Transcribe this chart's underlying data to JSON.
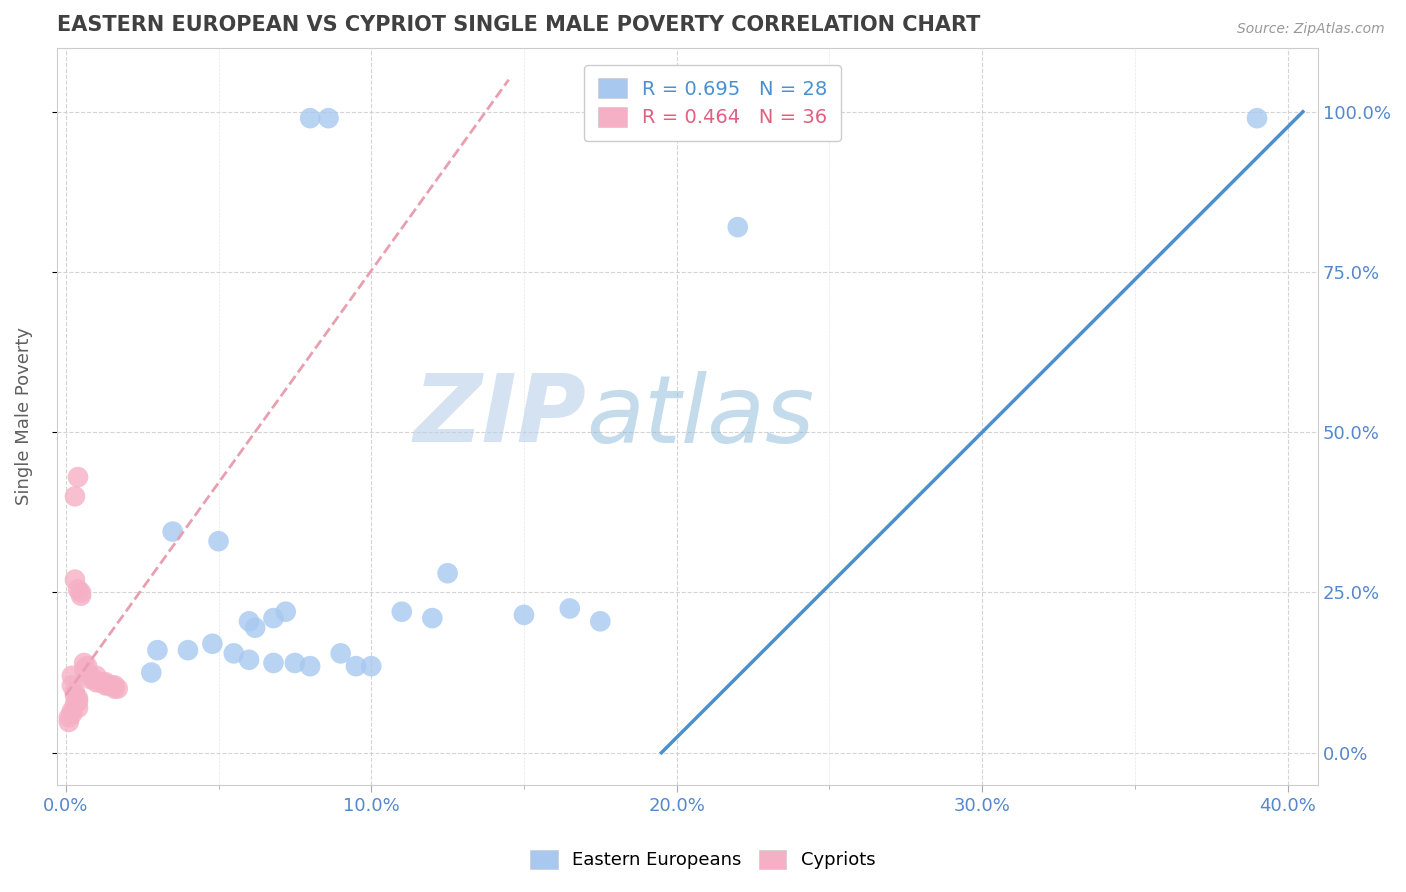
{
  "title": "EASTERN EUROPEAN VS CYPRIOT SINGLE MALE POVERTY CORRELATION CHART",
  "source": "Source: ZipAtlas.com",
  "xlabel_ticks": [
    "0.0%",
    "",
    "",
    "",
    "",
    "10.0%",
    "",
    "",
    "",
    "",
    "20.0%",
    "",
    "",
    "",
    "",
    "30.0%",
    "",
    "",
    "",
    "",
    "40.0%"
  ],
  "ylabel_ticks_right": [
    "0.0%",
    "25.0%",
    "50.0%",
    "75.0%",
    "100.0%"
  ],
  "xlim": [
    -0.003,
    0.41
  ],
  "ylim": [
    -0.05,
    1.1
  ],
  "ylabel": "Single Male Poverty",
  "legend_blue_label": "Eastern Europeans",
  "legend_pink_label": "Cypriots",
  "blue_R": 0.695,
  "blue_N": 28,
  "pink_R": 0.464,
  "pink_N": 36,
  "blue_color": "#a8c8f0",
  "pink_color": "#f5b0c5",
  "blue_line_color": "#4a90d0",
  "pink_line_color": "#e06080",
  "pink_dash_color": "#e8a0b0",
  "watermark_zip": "ZIP",
  "watermark_atlas": "atlas",
  "grid_color": "#d0d0d0",
  "background_color": "#ffffff",
  "title_color": "#404040",
  "axis_label_color": "#606060",
  "tick_label_color": "#5588cc",
  "blue_scatter_x": [
    0.08,
    0.086,
    0.22,
    0.035,
    0.05,
    0.06,
    0.062,
    0.068,
    0.072,
    0.03,
    0.04,
    0.048,
    0.055,
    0.06,
    0.068,
    0.075,
    0.08,
    0.09,
    0.095,
    0.1,
    0.11,
    0.12,
    0.125,
    0.15,
    0.165,
    0.175,
    0.39,
    0.028
  ],
  "blue_scatter_y": [
    0.99,
    0.99,
    0.82,
    0.345,
    0.33,
    0.205,
    0.195,
    0.21,
    0.22,
    0.16,
    0.16,
    0.17,
    0.155,
    0.145,
    0.14,
    0.14,
    0.135,
    0.155,
    0.135,
    0.135,
    0.22,
    0.21,
    0.28,
    0.215,
    0.225,
    0.205,
    0.99,
    0.125
  ],
  "pink_scatter_x": [
    0.003,
    0.004,
    0.003,
    0.004,
    0.005,
    0.005,
    0.006,
    0.006,
    0.007,
    0.007,
    0.008,
    0.008,
    0.009,
    0.01,
    0.01,
    0.011,
    0.012,
    0.013,
    0.013,
    0.014,
    0.015,
    0.016,
    0.016,
    0.017,
    0.002,
    0.002,
    0.003,
    0.003,
    0.004,
    0.004,
    0.003,
    0.004,
    0.002,
    0.002,
    0.001,
    0.001
  ],
  "pink_scatter_y": [
    0.4,
    0.43,
    0.27,
    0.255,
    0.25,
    0.245,
    0.14,
    0.13,
    0.135,
    0.125,
    0.12,
    0.115,
    0.115,
    0.12,
    0.11,
    0.11,
    0.11,
    0.11,
    0.105,
    0.105,
    0.105,
    0.105,
    0.1,
    0.1,
    0.12,
    0.105,
    0.095,
    0.09,
    0.085,
    0.08,
    0.075,
    0.07,
    0.065,
    0.06,
    0.055,
    0.048
  ],
  "blue_line_x": [
    0.195,
    0.405
  ],
  "blue_line_y": [
    0.0,
    1.0
  ],
  "pink_line_x": [
    0.0,
    0.145
  ],
  "pink_line_y": [
    0.09,
    1.05
  ]
}
